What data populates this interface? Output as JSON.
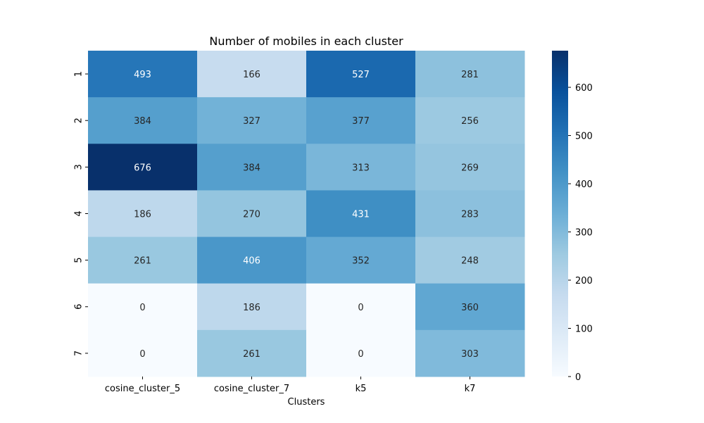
{
  "chart_data": {
    "type": "heatmap",
    "title": "Number of mobiles in each cluster",
    "xlabel": "Clusters",
    "ylabel": "",
    "columns": [
      "cosine_cluster_5",
      "cosine_cluster_7",
      "k5",
      "k7"
    ],
    "rows": [
      "1",
      "2",
      "3",
      "4",
      "5",
      "6",
      "7"
    ],
    "values": [
      [
        493,
        166,
        527,
        281
      ],
      [
        384,
        327,
        377,
        256
      ],
      [
        676,
        384,
        313,
        269
      ],
      [
        186,
        270,
        431,
        283
      ],
      [
        261,
        406,
        352,
        248
      ],
      [
        0,
        186,
        0,
        360
      ],
      [
        0,
        261,
        0,
        303
      ]
    ],
    "colorbar": {
      "min": 0,
      "max": 676,
      "ticks": [
        0,
        100,
        200,
        300,
        400,
        500,
        600
      ]
    },
    "colormap": "Blues",
    "grid": false
  }
}
